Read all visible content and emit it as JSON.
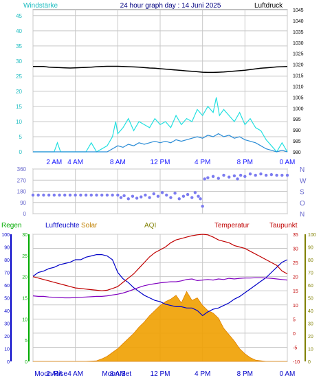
{
  "header": {
    "left_label": "Windstärke",
    "title": "24 hour graph day : 14 Juni 2025",
    "right_label": "Luftdruck"
  },
  "colors": {
    "background": "#ffffff",
    "plot_bg": "#ffffff",
    "grid": "#c8c8c8",
    "wind_avg": "#2a8cd6",
    "wind_gust": "#22e0e0",
    "pressure": "#000000",
    "direction": "#7b7bf0",
    "rain": "#00cc00",
    "humidity": "#0000c8",
    "solar": "#f0a000",
    "aqi": "#808000",
    "temperature": "#c00000",
    "dewpoint": "#8000c0",
    "hour_label": "#1a1aff",
    "left_axis": "#1abcc0",
    "direction_axis": "#6666cc"
  },
  "time_axis": {
    "range": [
      0,
      24
    ],
    "ticks": [
      {
        "x": 2,
        "label": "2 AM"
      },
      {
        "x": 4,
        "label": "4 AM"
      },
      {
        "x": 8,
        "label": "8 AM"
      },
      {
        "x": 12,
        "label": "12 PM"
      },
      {
        "x": 16,
        "label": "4 PM"
      },
      {
        "x": 20,
        "label": "8 PM"
      },
      {
        "x": 24,
        "label": "0 AM"
      }
    ],
    "grid_lines": [
      0,
      4,
      8,
      12,
      16,
      20,
      24
    ]
  },
  "bottom_annotations": [
    {
      "label": "Moon Rise",
      "x": 1.7
    },
    {
      "label": "2 AM",
      "x": 2
    },
    {
      "label": "4 AM",
      "x": 4
    },
    {
      "label": "Moon Set",
      "x": 7.9
    },
    {
      "label": "8 AM",
      "x": 8
    },
    {
      "label": "12 PM",
      "x": 12
    },
    {
      "label": "4 PM",
      "x": 16
    },
    {
      "label": "8 PM",
      "x": 20
    },
    {
      "label": "0 AM",
      "x": 24
    }
  ],
  "chart_data": [
    {
      "type": "line",
      "id": "wind_pressure",
      "y_left": {
        "name": "Windstärke",
        "range": [
          0,
          47
        ],
        "ticks": [
          0,
          5,
          10,
          15,
          20,
          25,
          30,
          35,
          40,
          45
        ]
      },
      "y_right": {
        "name": "Luftdruck",
        "range": [
          980,
          1045
        ],
        "ticks": [
          980,
          985,
          990,
          995,
          1000,
          1005,
          1010,
          1015,
          1020,
          1025,
          1030,
          1035,
          1040,
          1045
        ]
      },
      "series": [
        {
          "axis": "right",
          "style": "pressure",
          "x": [
            0,
            0.5,
            1,
            1.5,
            2,
            2.5,
            3,
            3.5,
            4,
            4.5,
            5,
            5.5,
            6,
            6.5,
            7,
            7.5,
            8,
            8.5,
            9,
            9.5,
            10,
            10.5,
            11,
            11.5,
            12,
            12.5,
            13,
            13.5,
            14,
            14.5,
            15,
            15.5,
            16,
            16.5,
            17,
            17.5,
            18,
            18.5,
            19,
            19.5,
            20,
            20.5,
            21,
            21.5,
            22,
            22.5,
            23,
            23.5,
            24
          ],
          "values": [
            1019,
            1019,
            1019,
            1018.7,
            1018.6,
            1018.5,
            1018.4,
            1018.3,
            1018.4,
            1018.5,
            1018.6,
            1018.7,
            1018.9,
            1019,
            1019.1,
            1019.1,
            1019.1,
            1019,
            1018.9,
            1018.8,
            1018.7,
            1018.5,
            1018.3,
            1018.2,
            1018.0,
            1017.8,
            1017.6,
            1017.4,
            1017.2,
            1017.0,
            1016.8,
            1016.6,
            1016.4,
            1016.3,
            1016.3,
            1016.4,
            1016.5,
            1016.7,
            1016.9,
            1017.1,
            1017.3,
            1017.6,
            1017.9,
            1018.2,
            1018.4,
            1018.6,
            1018.8,
            1018.9,
            1019
          ]
        },
        {
          "axis": "left",
          "style": "wind_gust",
          "x": [
            0,
            1,
            2,
            2.3,
            2.6,
            3,
            4,
            5,
            5.5,
            6,
            7,
            7.5,
            7.8,
            8,
            8.5,
            9,
            9.5,
            10,
            10.5,
            11,
            11.5,
            12,
            12.5,
            13,
            13.5,
            14,
            14.5,
            15,
            15.5,
            16,
            16.5,
            17,
            17.3,
            17.6,
            18,
            18.5,
            19,
            19.5,
            20,
            20.5,
            21,
            21.5,
            22,
            22.5,
            23,
            23.5,
            24
          ],
          "values": [
            0,
            0,
            0,
            3,
            0,
            0,
            0,
            0,
            3,
            0,
            2,
            5,
            10,
            6,
            8,
            11,
            7,
            10,
            9,
            8,
            11,
            9,
            10,
            8,
            12,
            9,
            11,
            10,
            14,
            12,
            15,
            13,
            18,
            12,
            14,
            12,
            10,
            13,
            9,
            11,
            8,
            7,
            4,
            2,
            0,
            3,
            0
          ]
        },
        {
          "axis": "left",
          "style": "wind_avg",
          "x": [
            0,
            1,
            2,
            3,
            4,
            5,
            6,
            7,
            7.5,
            8,
            8.5,
            9,
            9.5,
            10,
            10.5,
            11,
            11.5,
            12,
            12.5,
            13,
            13.5,
            14,
            14.5,
            15,
            15.5,
            16,
            16.5,
            17,
            17.5,
            18,
            18.5,
            19,
            19.5,
            20,
            20.5,
            21,
            21.5,
            22,
            22.5,
            23,
            23.5,
            24
          ],
          "values": [
            0,
            0,
            0,
            0,
            0,
            0,
            0,
            0,
            1,
            2,
            1.5,
            2.5,
            2,
            3,
            2.5,
            3,
            3.5,
            3,
            3.5,
            3,
            4,
            3.5,
            4,
            4.5,
            5,
            4.5,
            5.5,
            5,
            6,
            5,
            5.5,
            4.5,
            5,
            4,
            3.5,
            3,
            2,
            1,
            0.5,
            0,
            0.5,
            0
          ]
        }
      ]
    },
    {
      "type": "scatter",
      "id": "wind_direction",
      "y_range": [
        0,
        360
      ],
      "y_ticks": [
        0,
        90,
        180,
        270,
        360
      ],
      "compass": [
        "N",
        "W",
        "S",
        "O",
        "N"
      ],
      "x": [
        0,
        0.5,
        1,
        1.5,
        2,
        2.5,
        3,
        3.5,
        4,
        4.5,
        5,
        5.5,
        6,
        6.5,
        7,
        7.5,
        8,
        8.3,
        8.6,
        9,
        9.4,
        9.8,
        10.2,
        10.6,
        11,
        11.4,
        11.8,
        12.2,
        12.6,
        13,
        13.4,
        13.8,
        14.2,
        14.6,
        15,
        15.3,
        15.6,
        15.8,
        16,
        16.2,
        16.5,
        17,
        17.5,
        18,
        18.5,
        19,
        19.3,
        19.6,
        20,
        20.5,
        21,
        21.5,
        22,
        22.5,
        23,
        23.5,
        24
      ],
      "values": [
        150,
        150,
        150,
        150,
        150,
        150,
        150,
        150,
        150,
        150,
        150,
        150,
        150,
        150,
        150,
        150,
        150,
        130,
        145,
        120,
        140,
        125,
        135,
        150,
        130,
        160,
        140,
        170,
        150,
        130,
        165,
        120,
        140,
        155,
        130,
        170,
        140,
        120,
        60,
        280,
        290,
        300,
        285,
        310,
        295,
        305,
        280,
        310,
        300,
        320,
        310,
        320,
        310,
        315,
        310,
        310,
        310
      ]
    },
    {
      "type": "line",
      "id": "multi_weather",
      "legend": [
        "Regen",
        "Luftfeuchte",
        "Solar",
        "AQI",
        "Temperatur",
        "Taupunkt"
      ],
      "axes": {
        "rain": {
          "range": [
            0,
            100
          ],
          "ticks": [
            0,
            10,
            20,
            30,
            40,
            50,
            60,
            70,
            80,
            90,
            100
          ]
        },
        "humidity": {
          "range": [
            0,
            30
          ],
          "ticks": [
            0,
            5,
            10,
            15,
            20,
            25,
            30
          ]
        },
        "temperature": {
          "range": [
            -10,
            35
          ],
          "ticks": [
            -10,
            -5,
            0,
            5,
            10,
            15,
            20,
            25,
            30,
            35
          ]
        },
        "aqi": {
          "range": [
            0,
            100
          ],
          "ticks": [
            0,
            10,
            20,
            30,
            40,
            50,
            60,
            70,
            80,
            90,
            100
          ]
        }
      },
      "series": [
        {
          "name": "Solar",
          "style": "solar",
          "axis": "rain",
          "x": [
            0,
            5,
            6,
            6.5,
            7,
            7.5,
            8,
            8.5,
            9,
            9.5,
            10,
            10.5,
            11,
            11.5,
            12,
            12.5,
            13,
            13.5,
            14,
            14.5,
            15,
            15.5,
            16,
            16.5,
            17,
            17.5,
            18,
            18.5,
            19,
            19.5,
            20,
            20.5,
            21,
            22,
            24
          ],
          "values": [
            0,
            0,
            0.5,
            2,
            4,
            7,
            10,
            14,
            18,
            22,
            27,
            31,
            36,
            40,
            44,
            47,
            49,
            52,
            46,
            55,
            48,
            50,
            44,
            40,
            38,
            34,
            26,
            21,
            16,
            10,
            6,
            3,
            1,
            0,
            0
          ]
        },
        {
          "name": "Luftfeuchte",
          "style": "humidity",
          "axis": "rain",
          "x": [
            0,
            0.5,
            1,
            1.5,
            2,
            2.5,
            3,
            3.5,
            4,
            4.5,
            5,
            5.5,
            6,
            6.5,
            7,
            7.5,
            8,
            8.5,
            9,
            9.5,
            10,
            10.5,
            11,
            11.5,
            12,
            12.5,
            13,
            13.5,
            14,
            14.5,
            15,
            15.5,
            16,
            16.5,
            17,
            17.5,
            18,
            18.5,
            19,
            19.5,
            20,
            20.5,
            21,
            21.5,
            22,
            22.5,
            23,
            23.5,
            24
          ],
          "values": [
            67,
            70,
            71,
            73,
            74,
            76,
            77,
            78,
            80,
            80,
            82,
            83,
            84,
            84,
            83,
            80,
            70,
            65,
            62,
            58,
            55,
            52,
            50,
            48,
            47,
            45,
            44,
            43,
            43,
            42,
            42,
            40,
            36,
            39,
            41,
            42,
            44,
            46,
            49,
            51,
            54,
            57,
            60,
            63,
            66,
            70,
            74,
            78,
            80
          ]
        },
        {
          "name": "Temperatur",
          "style": "temperature",
          "axis": "temperature",
          "x": [
            0,
            0.5,
            1,
            1.5,
            2,
            2.5,
            3,
            3.5,
            4,
            4.5,
            5,
            5.5,
            6,
            6.5,
            7,
            7.5,
            8,
            8.5,
            9,
            9.5,
            10,
            10.5,
            11,
            11.5,
            12,
            12.5,
            13,
            13.5,
            14,
            14.5,
            15,
            15.5,
            16,
            16.5,
            17,
            17.5,
            18,
            18.5,
            19,
            19.5,
            20,
            20.5,
            21,
            21.5,
            22,
            22.5,
            23,
            23.5,
            24
          ],
          "values": [
            20,
            19.5,
            19,
            18.5,
            18,
            17.5,
            17,
            16.5,
            16,
            15.8,
            15.6,
            15.4,
            15.2,
            15,
            15.2,
            15.8,
            16.5,
            18,
            19.5,
            21,
            23,
            25,
            27,
            28.5,
            29.5,
            30.5,
            32,
            33,
            33.5,
            34,
            34.5,
            34.8,
            35,
            34.8,
            34,
            33,
            32.5,
            32,
            31,
            30.5,
            30,
            29,
            28,
            27,
            26,
            25,
            24,
            22,
            21
          ]
        },
        {
          "name": "Taupunkt",
          "style": "dewpoint",
          "axis": "temperature",
          "x": [
            0,
            0.5,
            1,
            1.5,
            2,
            2.5,
            3,
            3.5,
            4,
            4.5,
            5,
            5.5,
            6,
            6.5,
            7,
            7.5,
            8,
            8.5,
            9,
            9.5,
            10,
            10.5,
            11,
            11.5,
            12,
            12.5,
            13,
            13.5,
            14,
            14.5,
            15,
            15.5,
            16,
            16.5,
            17,
            17.5,
            18,
            18.5,
            19,
            19.5,
            20,
            20.5,
            21,
            21.5,
            22,
            22.5,
            23,
            23.5,
            24
          ],
          "values": [
            13.2,
            13,
            13,
            12.8,
            12.7,
            12.6,
            12.5,
            12.5,
            12.6,
            12.7,
            12.8,
            12.9,
            13,
            13,
            13.2,
            13.5,
            13.8,
            14.2,
            14.8,
            15.5,
            16.2,
            16.8,
            17.2,
            17.5,
            17.8,
            18,
            18.2,
            18.2,
            18.5,
            19,
            19.2,
            18.6,
            18.8,
            19,
            18.8,
            19.2,
            19,
            19.4,
            19.2,
            19.4,
            19.5,
            19.5,
            19.6,
            19.6,
            19.5,
            19.4,
            19.2,
            19,
            18.8
          ]
        }
      ]
    }
  ]
}
